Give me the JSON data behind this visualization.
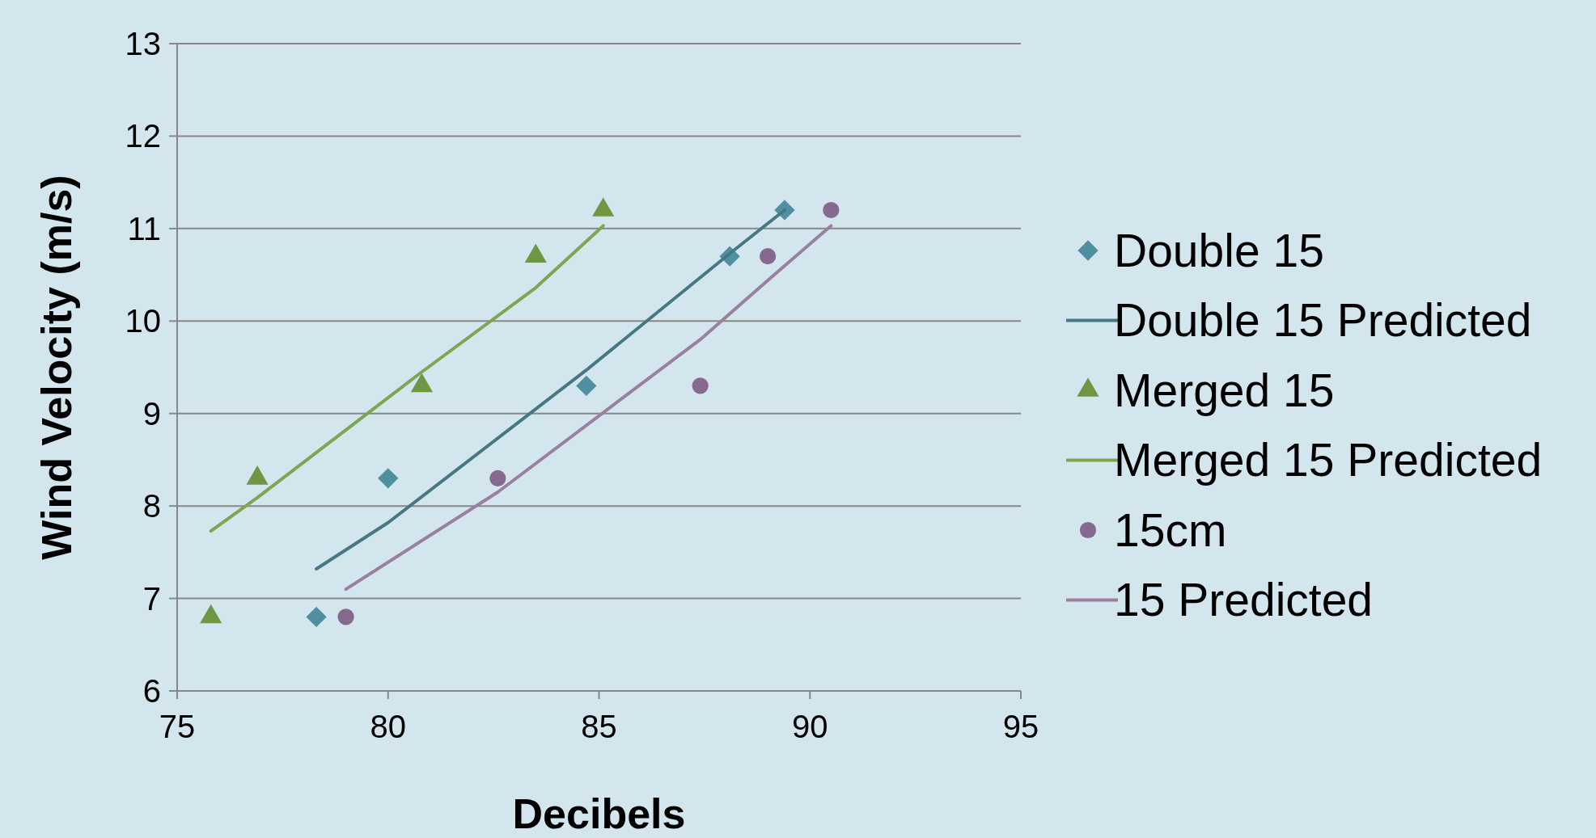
{
  "chart_data": {
    "type": "scatter",
    "xlabel": "Decibels",
    "ylabel": "Wind Velocity (m/s)",
    "xlim": [
      75,
      95
    ],
    "xticks": [
      75,
      80,
      85,
      90,
      95
    ],
    "ylim": [
      6,
      13
    ],
    "yticks": [
      6,
      7,
      8,
      9,
      10,
      11,
      12,
      13
    ],
    "grid": "y",
    "legend": "right",
    "series": [
      {
        "name": "Double 15",
        "marker": "diamond",
        "color": "#4f8fa0",
        "x": [
          78.3,
          80.0,
          84.7,
          88.1,
          89.4
        ],
        "values": [
          6.8,
          8.3,
          9.3,
          10.7,
          11.2
        ]
      },
      {
        "name": "Double 15 Predicted",
        "type": "line",
        "marker": "none",
        "color": "#467884",
        "x": [
          78.3,
          80.0,
          84.7,
          88.1,
          89.4
        ],
        "values": [
          7.32,
          7.82,
          9.47,
          10.73,
          11.2
        ]
      },
      {
        "name": "Merged 15",
        "marker": "triangle",
        "color": "#6f9643",
        "x": [
          75.8,
          76.9,
          80.8,
          83.5,
          85.1
        ],
        "values": [
          6.8,
          8.3,
          9.3,
          10.7,
          11.2
        ]
      },
      {
        "name": "Merged 15 Predicted",
        "type": "line",
        "marker": "none",
        "color": "#7ea552",
        "x": [
          75.8,
          76.9,
          80.8,
          83.5,
          85.1
        ],
        "values": [
          7.73,
          8.09,
          9.45,
          10.36,
          11.03
        ]
      },
      {
        "name": "15cm",
        "marker": "circle",
        "color": "#86698e",
        "x": [
          79.0,
          82.6,
          87.4,
          89.0,
          90.5
        ],
        "values": [
          6.8,
          8.3,
          9.3,
          10.7,
          11.2
        ]
      },
      {
        "name": "15 Predicted",
        "type": "line",
        "marker": "none",
        "color": "#9a80a0",
        "x": [
          79.0,
          82.6,
          87.4,
          89.0,
          90.5
        ],
        "values": [
          7.1,
          8.15,
          9.8,
          10.44,
          11.03
        ]
      }
    ]
  }
}
